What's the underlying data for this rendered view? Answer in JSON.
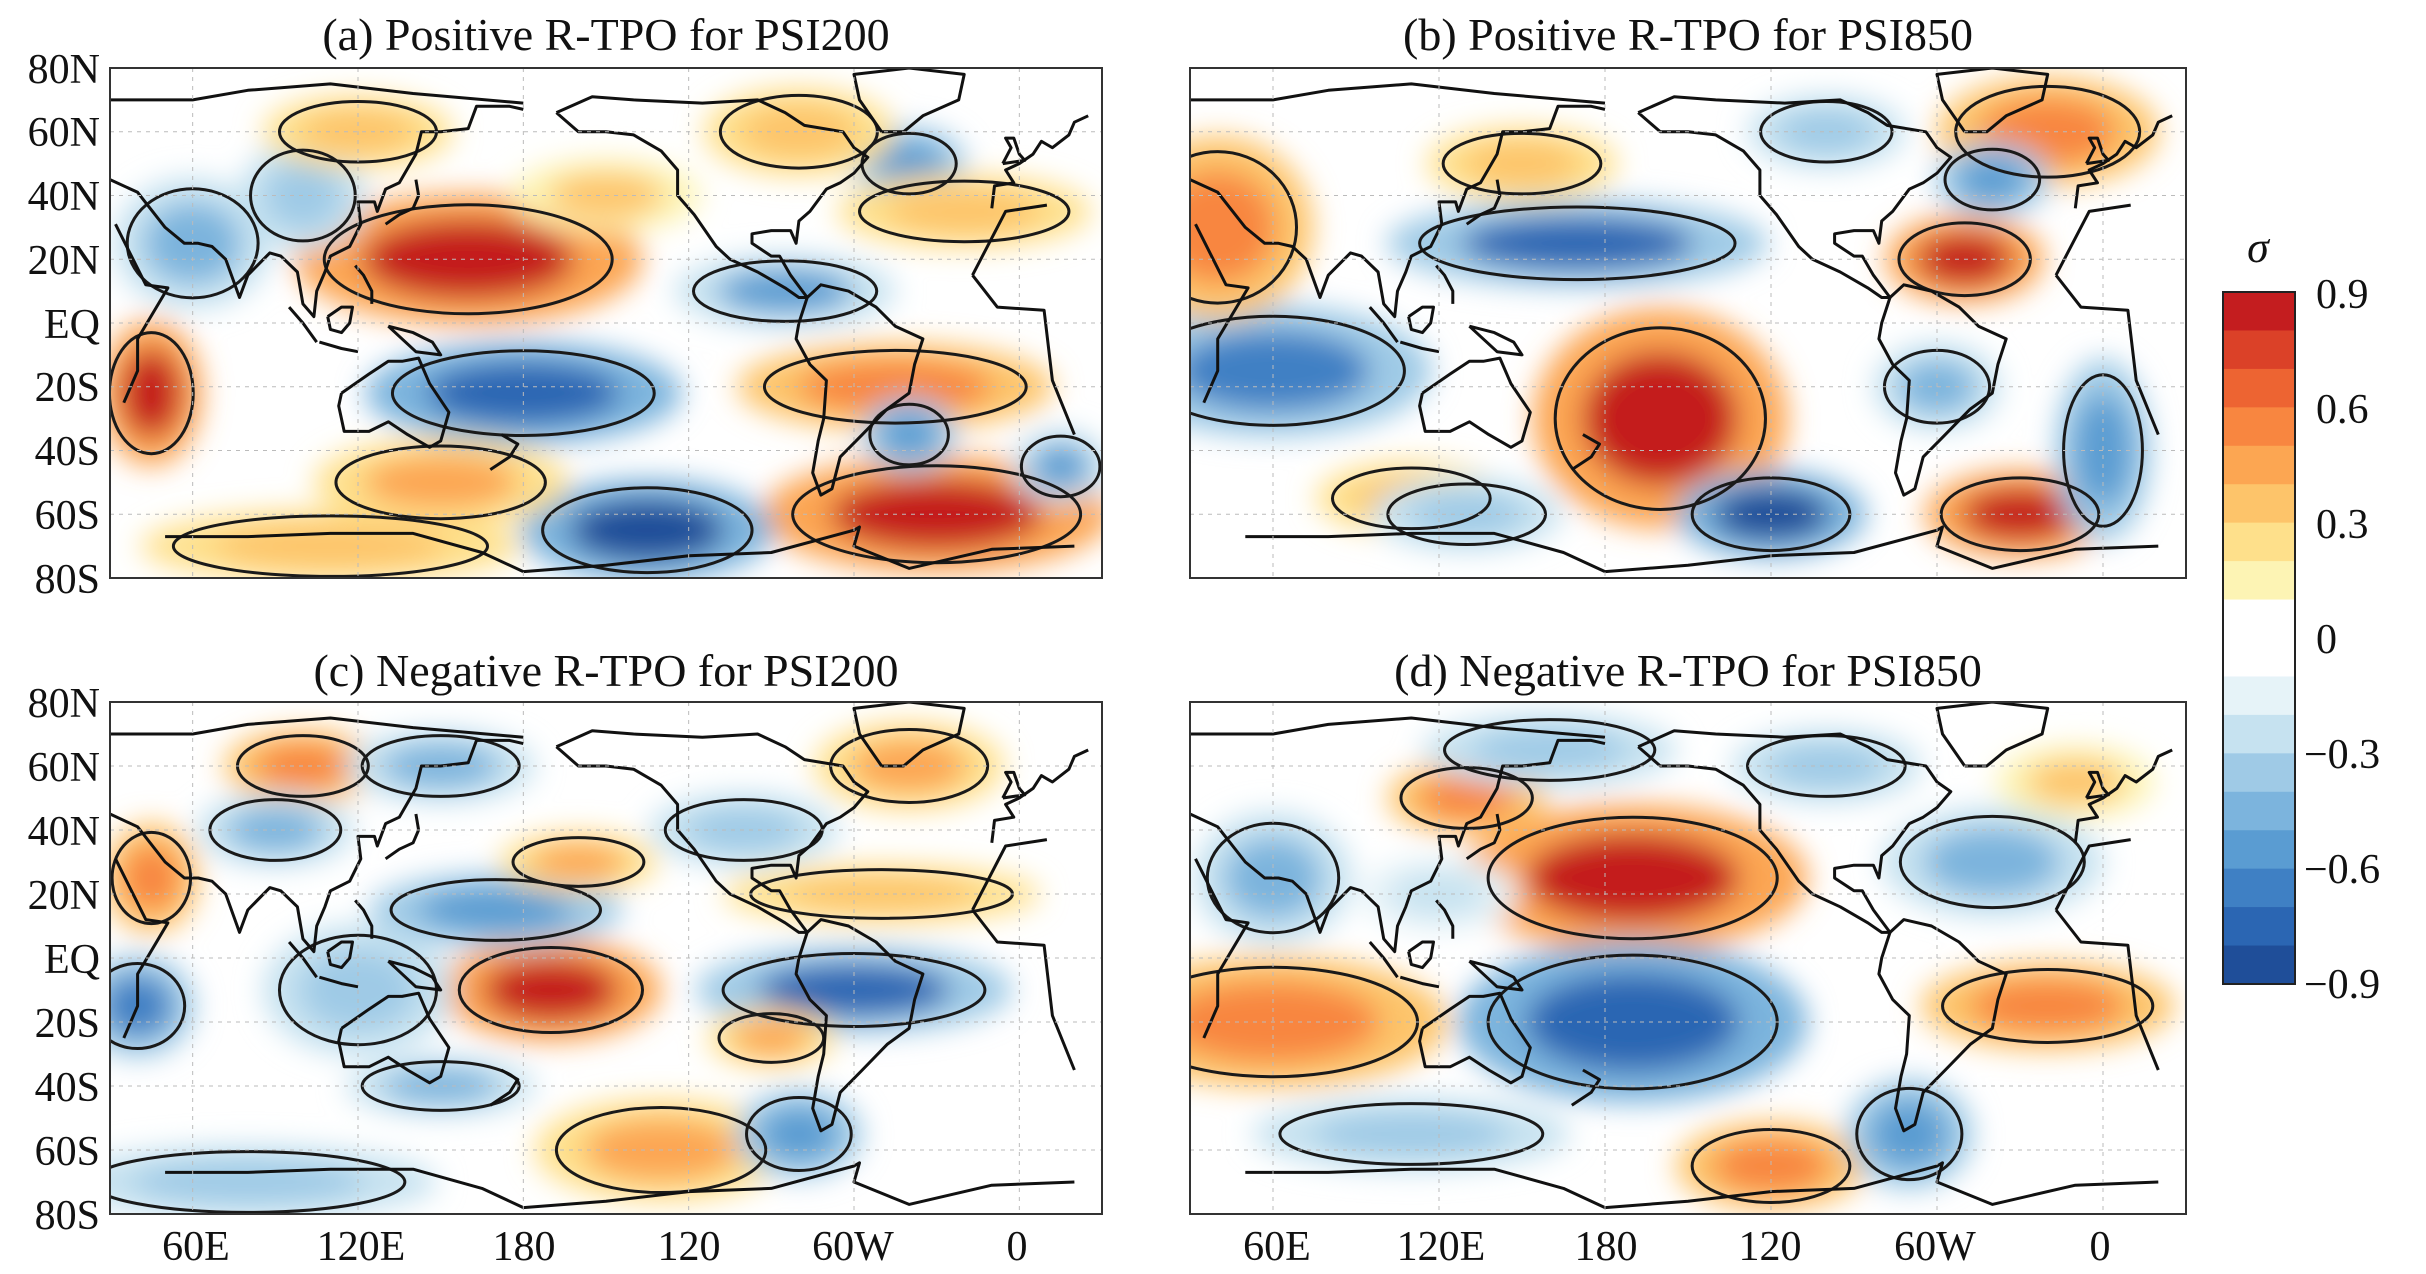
{
  "panels": [
    {
      "title": "(a) Positive R-TPO for PSI200",
      "blobs": [
        {
          "lon": 160,
          "lat": 20,
          "rx": 55,
          "ry": 18,
          "v": 0.85
        },
        {
          "lon": 180,
          "lat": -22,
          "rx": 50,
          "ry": 14,
          "v": -0.8
        },
        {
          "lon": -30,
          "lat": -60,
          "rx": 55,
          "ry": 16,
          "v": 0.9
        },
        {
          "lon": -135,
          "lat": -65,
          "rx": 40,
          "ry": 14,
          "v": -0.85
        },
        {
          "lon": -45,
          "lat": -20,
          "rx": 50,
          "ry": 12,
          "v": 0.6
        },
        {
          "lon": -85,
          "lat": 10,
          "rx": 35,
          "ry": 10,
          "v": -0.55
        },
        {
          "lon": 45,
          "lat": -22,
          "rx": 16,
          "ry": 20,
          "v": 0.85
        },
        {
          "lon": 60,
          "lat": 25,
          "rx": 25,
          "ry": 18,
          "v": -0.5
        },
        {
          "lon": -40,
          "lat": 50,
          "rx": 18,
          "ry": 10,
          "v": -0.6
        },
        {
          "lon": -20,
          "lat": 35,
          "rx": 40,
          "ry": 10,
          "v": 0.4
        },
        {
          "lon": -80,
          "lat": 60,
          "rx": 30,
          "ry": 12,
          "v": 0.4
        },
        {
          "lon": -40,
          "lat": -35,
          "rx": 15,
          "ry": 10,
          "v": -0.6
        },
        {
          "lon": 15,
          "lat": -45,
          "rx": 15,
          "ry": 10,
          "v": -0.55
        },
        {
          "lon": 150,
          "lat": -50,
          "rx": 40,
          "ry": 12,
          "v": 0.5
        },
        {
          "lon": 100,
          "lat": 40,
          "rx": 20,
          "ry": 15,
          "v": -0.4
        },
        {
          "lon": 110,
          "lat": -70,
          "rx": 60,
          "ry": 10,
          "v": 0.4
        },
        {
          "lon": 120,
          "lat": 60,
          "rx": 30,
          "ry": 10,
          "v": 0.4
        },
        {
          "lon": -150,
          "lat": 40,
          "rx": 30,
          "ry": 10,
          "v": 0.35
        }
      ]
    },
    {
      "title": "(b) Positive R-TPO for PSI850",
      "blobs": [
        {
          "lon": -160,
          "lat": -30,
          "rx": 40,
          "ry": 30,
          "v": 0.95
        },
        {
          "lon": 170,
          "lat": 25,
          "rx": 60,
          "ry": 12,
          "v": -0.75
        },
        {
          "lon": 60,
          "lat": -15,
          "rx": 50,
          "ry": 18,
          "v": -0.7
        },
        {
          "lon": -30,
          "lat": -60,
          "rx": 30,
          "ry": 12,
          "v": 0.9
        },
        {
          "lon": -120,
          "lat": -60,
          "rx": 30,
          "ry": 12,
          "v": -0.85
        },
        {
          "lon": -50,
          "lat": 20,
          "rx": 25,
          "ry": 12,
          "v": 0.85
        },
        {
          "lon": 0,
          "lat": -40,
          "rx": 15,
          "ry": 25,
          "v": -0.6
        },
        {
          "lon": 40,
          "lat": 30,
          "rx": 30,
          "ry": 25,
          "v": 0.6
        },
        {
          "lon": -20,
          "lat": 60,
          "rx": 35,
          "ry": 15,
          "v": 0.6
        },
        {
          "lon": -40,
          "lat": 45,
          "rx": 18,
          "ry": 10,
          "v": -0.6
        },
        {
          "lon": -100,
          "lat": 60,
          "rx": 25,
          "ry": 10,
          "v": -0.4
        },
        {
          "lon": 150,
          "lat": 50,
          "rx": 30,
          "ry": 10,
          "v": 0.4
        },
        {
          "lon": -60,
          "lat": -20,
          "rx": 20,
          "ry": 12,
          "v": -0.5
        },
        {
          "lon": 110,
          "lat": -55,
          "rx": 30,
          "ry": 10,
          "v": 0.4
        },
        {
          "lon": 130,
          "lat": -60,
          "rx": 30,
          "ry": 10,
          "v": -0.4
        }
      ]
    },
    {
      "title": "(c) Negative R-TPO for PSI200",
      "blobs": [
        {
          "lon": -170,
          "lat": -10,
          "rx": 35,
          "ry": 14,
          "v": 0.95
        },
        {
          "lon": -60,
          "lat": -10,
          "rx": 50,
          "ry": 12,
          "v": -0.75
        },
        {
          "lon": 40,
          "lat": -15,
          "rx": 18,
          "ry": 14,
          "v": -0.7
        },
        {
          "lon": 45,
          "lat": 25,
          "rx": 15,
          "ry": 15,
          "v": 0.6
        },
        {
          "lon": 100,
          "lat": 60,
          "rx": 25,
          "ry": 10,
          "v": 0.6
        },
        {
          "lon": 170,
          "lat": 15,
          "rx": 40,
          "ry": 10,
          "v": -0.6
        },
        {
          "lon": -130,
          "lat": -60,
          "rx": 40,
          "ry": 14,
          "v": 0.5
        },
        {
          "lon": -80,
          "lat": -55,
          "rx": 20,
          "ry": 12,
          "v": -0.6
        },
        {
          "lon": 120,
          "lat": -10,
          "rx": 30,
          "ry": 18,
          "v": -0.4
        },
        {
          "lon": -50,
          "lat": 20,
          "rx": 50,
          "ry": 8,
          "v": 0.4
        },
        {
          "lon": -40,
          "lat": 60,
          "rx": 30,
          "ry": 12,
          "v": 0.5
        },
        {
          "lon": 150,
          "lat": 60,
          "rx": 30,
          "ry": 10,
          "v": -0.5
        },
        {
          "lon": -160,
          "lat": 30,
          "rx": 25,
          "ry": 8,
          "v": 0.5
        },
        {
          "lon": -100,
          "lat": 40,
          "rx": 30,
          "ry": 10,
          "v": -0.4
        },
        {
          "lon": 80,
          "lat": -70,
          "rx": 60,
          "ry": 10,
          "v": -0.4
        },
        {
          "lon": -90,
          "lat": -25,
          "rx": 20,
          "ry": 8,
          "v": 0.5
        },
        {
          "lon": 150,
          "lat": -40,
          "rx": 30,
          "ry": 8,
          "v": -0.45
        },
        {
          "lon": 90,
          "lat": 40,
          "rx": 25,
          "ry": 10,
          "v": -0.45
        }
      ]
    },
    {
      "title": "(d) Negative R-TPO for PSI850",
      "blobs": [
        {
          "lon": -170,
          "lat": 25,
          "rx": 55,
          "ry": 20,
          "v": 0.85
        },
        {
          "lon": -170,
          "lat": -20,
          "rx": 55,
          "ry": 22,
          "v": -0.8
        },
        {
          "lon": 60,
          "lat": -20,
          "rx": 55,
          "ry": 18,
          "v": 0.6
        },
        {
          "lon": -20,
          "lat": -15,
          "rx": 40,
          "ry": 12,
          "v": 0.6
        },
        {
          "lon": -120,
          "lat": -65,
          "rx": 30,
          "ry": 12,
          "v": 0.6
        },
        {
          "lon": -70,
          "lat": -55,
          "rx": 20,
          "ry": 15,
          "v": -0.6
        },
        {
          "lon": 130,
          "lat": 50,
          "rx": 25,
          "ry": 10,
          "v": 0.6
        },
        {
          "lon": -40,
          "lat": 30,
          "rx": 35,
          "ry": 15,
          "v": -0.5
        },
        {
          "lon": 60,
          "lat": 25,
          "rx": 25,
          "ry": 18,
          "v": -0.45
        },
        {
          "lon": -10,
          "lat": 55,
          "rx": 25,
          "ry": 10,
          "v": 0.35
        },
        {
          "lon": 160,
          "lat": 65,
          "rx": 40,
          "ry": 10,
          "v": -0.4
        },
        {
          "lon": 110,
          "lat": -55,
          "rx": 50,
          "ry": 10,
          "v": -0.4
        },
        {
          "lon": -100,
          "lat": 60,
          "rx": 30,
          "ry": 10,
          "v": -0.4
        },
        {
          "lon": 120,
          "lat": 20,
          "rx": 25,
          "ry": 10,
          "v": -0.3
        }
      ]
    }
  ],
  "lat_labels": [
    "80N",
    "60N",
    "40N",
    "20N",
    "EQ",
    "20S",
    "40S",
    "60S",
    "80S"
  ],
  "lon_labels": [
    "60E",
    "120E",
    "180",
    "120",
    "60W",
    "0"
  ],
  "colorbar": {
    "symbol": "σ",
    "tick_labels": [
      "0.9",
      "0.6",
      "0.3",
      "0",
      "−0.3",
      "−0.6",
      "−0.9"
    ],
    "colors": [
      "#1f4e99",
      "#2b66b3",
      "#3f80c4",
      "#5a9cd2",
      "#7cb4dd",
      "#9fcae6",
      "#c6e2f0",
      "#e6f3f8",
      "#ffffff",
      "#ffffff",
      "#fdf4b4",
      "#fee08b",
      "#fdc46a",
      "#fca652",
      "#f88640",
      "#ed6432",
      "#db4128",
      "#c41d1f"
    ]
  }
}
